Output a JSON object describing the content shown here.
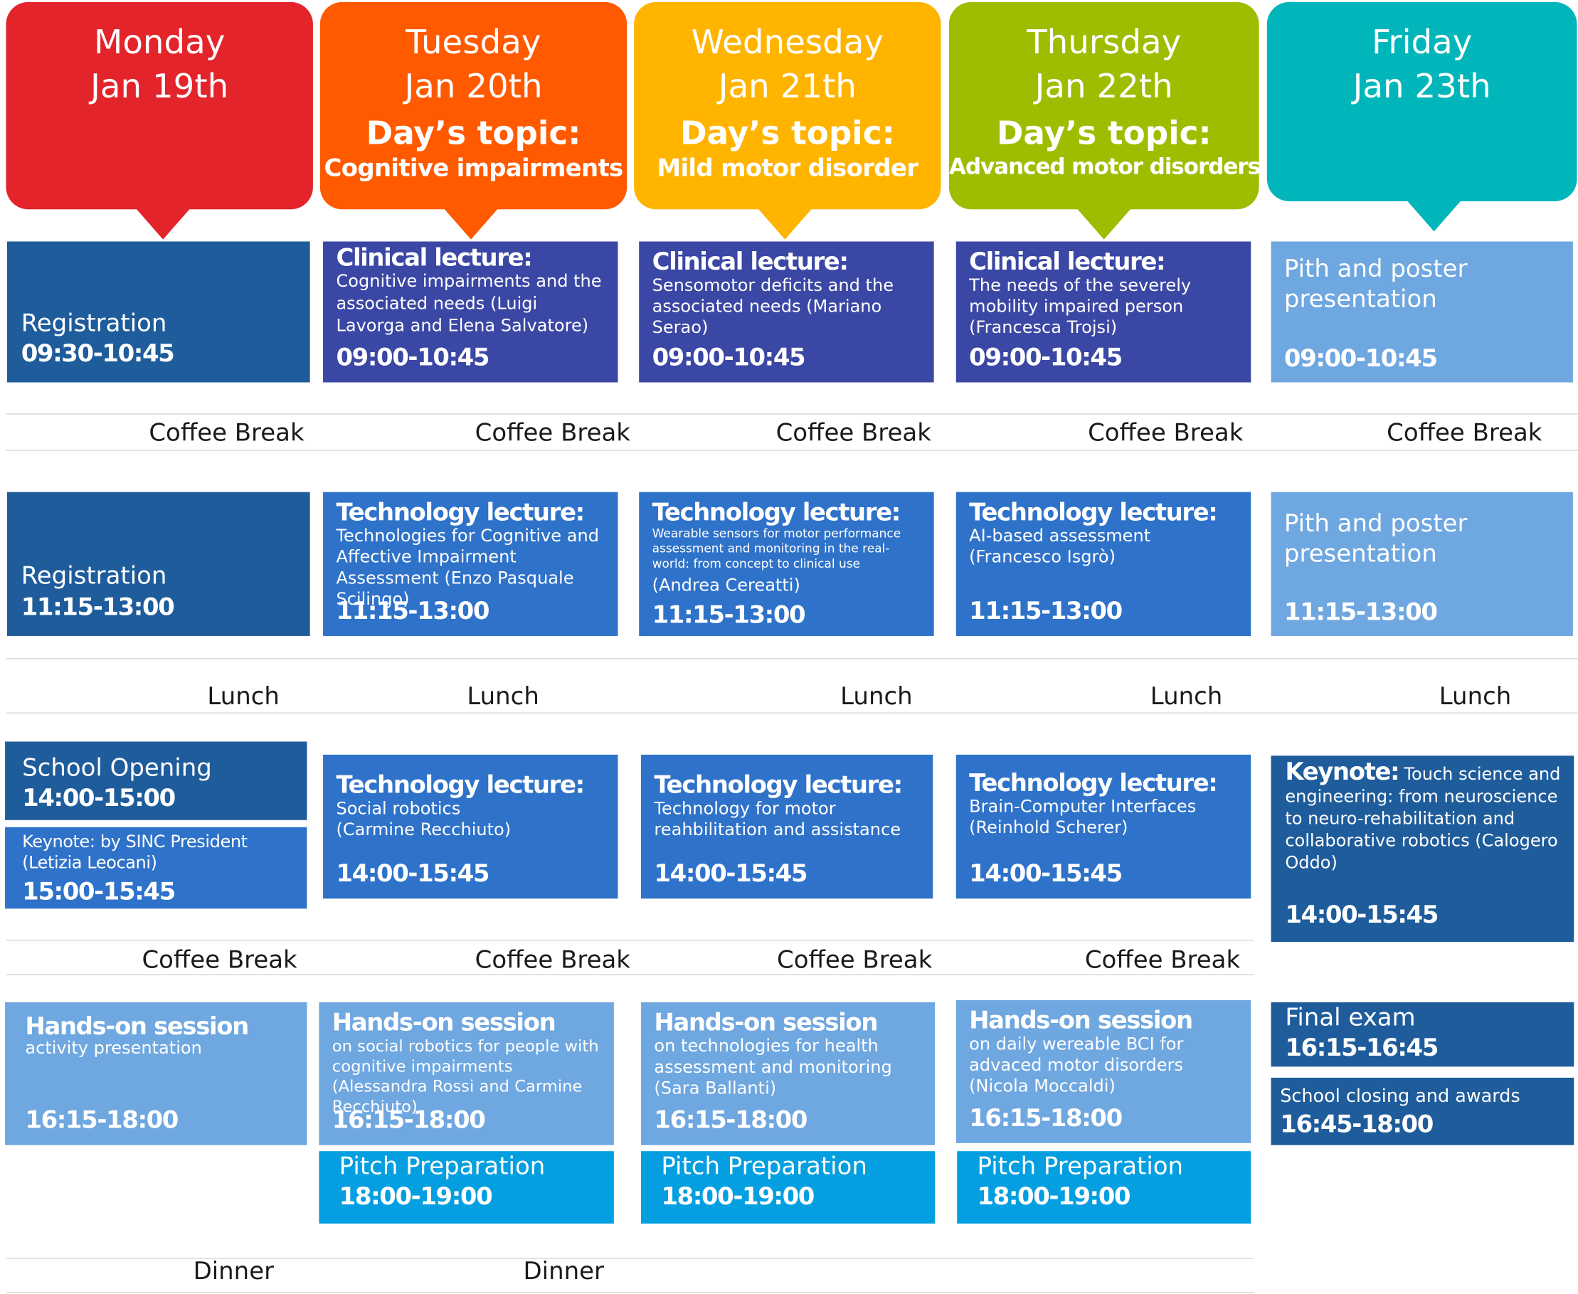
{
  "days": [
    {
      "name": "Monday",
      "date": "Jan 19th",
      "color": "#e3242b"
    },
    {
      "name": "Tuesday",
      "date": "Jan 20th",
      "topic_label": "Day’s topic:",
      "topic": "Cognitive impairments",
      "color": "#ff5a00"
    },
    {
      "name": "Wednesday",
      "date": "Jan 21th",
      "topic_label": "Day’s topic:",
      "topic": "Mild motor disorder",
      "color": "#ffb400"
    },
    {
      "name": "Thursday",
      "date": "Jan 22th",
      "topic_label": "Day’s topic:",
      "topic": "Advanced motor disorders",
      "color": "#9dbd00"
    },
    {
      "name": "Friday",
      "date": "Jan 23th",
      "color": "#00b6ba"
    }
  ],
  "breaks": {
    "coffee": "Coffee Break",
    "lunch": "Lunch",
    "dinner": "Dinner"
  },
  "mon": {
    "reg1": {
      "title": "Registration",
      "time": "09:30-10:45"
    },
    "reg2": {
      "title": "Registration",
      "time": "11:15-13:00"
    },
    "opening": {
      "title": "School Opening",
      "time": "14:00-15:00"
    },
    "keynote": {
      "desc": "Keynote: by SINC President (Letizia Leocani)",
      "time": "15:00-15:45"
    },
    "handson": {
      "title": "Hands-on session",
      "desc": "activity presentation",
      "time": "16:15-18:00"
    }
  },
  "tue": {
    "clinical": {
      "head": "Clinical lecture:",
      "desc": "Cognitive impairments and the associated needs (Luigi Lavorga and Elena Salvatore)",
      "time": "09:00-10:45"
    },
    "tech1": {
      "head": "Technology lecture:",
      "desc": "Technologies for Cognitive and Affective Impairment Assessment (Enzo Pasquale Scilingo)",
      "time": "11:15-13:00"
    },
    "tech2": {
      "head": "Technology lecture:",
      "desc": "Social robotics (Carmine Recchiuto)",
      "time": "14:00-15:45"
    },
    "handson": {
      "head": "Hands-on session",
      "desc": "on social robotics for people with cognitive impairments (Alessandra Rossi and Carmine Recchiuto)",
      "time": "16:15-18:00"
    },
    "pitch": {
      "title": "Pitch Preparation",
      "time": "18:00-19:00"
    }
  },
  "wed": {
    "clinical": {
      "head": "Clinical lecture:",
      "desc": "Sensomotor deficits and the associated needs (Mariano Serao)",
      "time": "09:00-10:45"
    },
    "tech1": {
      "head": "Technology lecture:",
      "desc": "Wearable sensors for motor performance assessment and monitoring in the real-world: from concept to clinical use",
      "speaker": "(Andrea Cereatti)",
      "time": "11:15-13:00"
    },
    "tech2": {
      "head": "Technology lecture:",
      "desc": "Technology for motor reahbilitation and assistance",
      "time": "14:00-15:45"
    },
    "handson": {
      "head": "Hands-on session",
      "desc": "on technologies for  health assessment  and monitoring (Sara Ballanti)",
      "time": "16:15-18:00"
    },
    "pitch": {
      "title": "Pitch Preparation",
      "time": "18:00-19:00"
    }
  },
  "thu": {
    "clinical": {
      "head": "Clinical lecture:",
      "desc": "The needs of the severely mobility impaired person (Francesca Trojsi)",
      "time": "09:00-10:45"
    },
    "tech1": {
      "head": "Technology lecture:",
      "desc": "AI-based assessment (Francesco Isgrò)",
      "time": "11:15-13:00"
    },
    "tech2": {
      "head": "Technology lecture:",
      "desc": "Brain-Computer Interfaces (Reinhold Scherer)",
      "time": "14:00-15:45"
    },
    "handson": {
      "head": "Hands-on session",
      "desc": "on daily wereable BCI for advaced motor disorders (Nicola Moccaldi)",
      "time": "16:15-18:00"
    },
    "pitch": {
      "title": "Pitch Preparation",
      "time": "18:00-19:00"
    }
  },
  "fri": {
    "pitch1": {
      "title": "Pith and poster presentation",
      "time": "09:00-10:45"
    },
    "pitch2": {
      "title": "Pith and poster presentation",
      "time": "11:15-13:00"
    },
    "keynote": {
      "head": "Keynote:",
      "desc": "Touch science and engineering: from neuroscience to neuro-rehabilitation and collaborative robotics (Calogero Oddo)",
      "time": "14:00-15:45"
    },
    "exam": {
      "title": "Final exam",
      "time": "16:15-16:45"
    },
    "closing": {
      "title": "School closing and awards",
      "time": "16:45-18:00"
    }
  }
}
